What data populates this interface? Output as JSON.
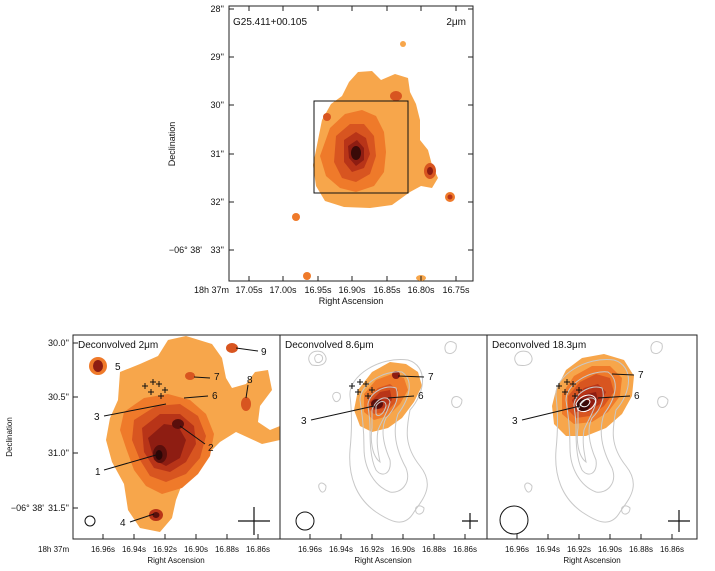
{
  "figure": {
    "top_panel": {
      "source_name": "G25.411+00.105",
      "band": "2μm",
      "y_label": "Declination",
      "x_label": "Right Ascension",
      "dec_ticks": [
        "28''",
        "29''",
        "30''",
        "31''",
        "32''",
        "33''"
      ],
      "dec_prefix": "−06° 38'",
      "ra_prefix": "18h 37m",
      "ra_ticks": [
        "17.05s",
        "17.00s",
        "16.95s",
        "16.90s",
        "16.85s",
        "16.80s",
        "16.75s"
      ]
    },
    "bottom_panels": [
      {
        "title": "Deconvolved 2μm"
      },
      {
        "title": "Deconvolved 8.6μm"
      },
      {
        "title": "Deconvolved 18.3μm"
      }
    ],
    "bottom_axes": {
      "y_label": "Declination",
      "x_label": "Right Ascension",
      "dec_prefix": "−06° 38'",
      "dec_ticks": [
        "30.0''",
        "30.5''",
        "31.0''",
        "31.5''"
      ],
      "ra_prefix": "18h 37m",
      "ra_ticks": [
        "16.96s",
        "16.94s",
        "16.92s",
        "16.90s",
        "16.88s",
        "16.86s"
      ]
    },
    "source_labels_panel1": [
      "1",
      "2",
      "3",
      "4",
      "5",
      "6",
      "7",
      "8",
      "9"
    ],
    "source_labels_panel2": [
      "3",
      "6",
      "7"
    ],
    "source_labels_panel3": [
      "3",
      "6",
      "7"
    ],
    "colors": {
      "level1": "#f7a64b",
      "level2": "#ef7a2a",
      "level3": "#d85520",
      "level4": "#b83418",
      "level5": "#8e1d12",
      "level6": "#5a0f0c",
      "contour": "#c8c8c8"
    }
  }
}
